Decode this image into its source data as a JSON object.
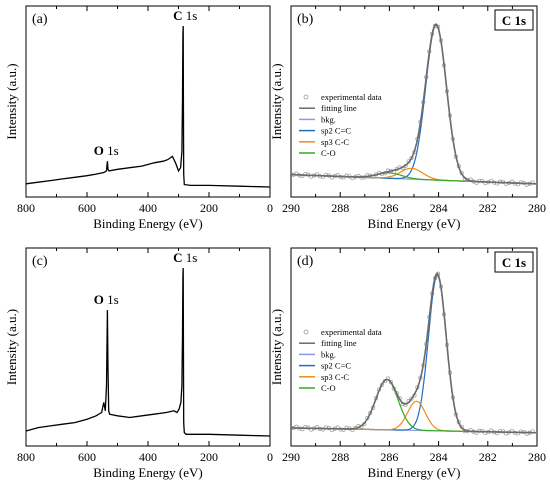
{
  "chart_data": [
    {
      "type": "line",
      "panel_label": "(a)",
      "xlabel": "Binding Energy (eV)",
      "ylabel": "Intensity (a.u.)",
      "xlim": [
        800,
        0
      ],
      "x_reversed": true,
      "xticks": [
        800,
        600,
        400,
        200,
        0
      ],
      "x_tick_labels": [
        "800",
        "600",
        "400",
        "200",
        "0"
      ],
      "y_ticks_shown": false,
      "annotations": [
        {
          "bold": "C",
          "text": " 1s",
          "x": 285
        },
        {
          "bold": "O",
          "text": " 1s",
          "x": 532
        }
      ],
      "series": [
        {
          "color": "#000000",
          "points": [
            [
              800,
              0.02
            ],
            [
              760,
              0.03
            ],
            [
              720,
              0.04
            ],
            [
              680,
              0.05
            ],
            [
              640,
              0.06
            ],
            [
              600,
              0.07
            ],
            [
              570,
              0.08
            ],
            [
              545,
              0.09
            ],
            [
              536,
              0.1
            ],
            [
              533,
              0.16
            ],
            [
              531,
              0.11
            ],
            [
              528,
              0.1
            ],
            [
              500,
              0.11
            ],
            [
              460,
              0.12
            ],
            [
              420,
              0.13
            ],
            [
              380,
              0.15
            ],
            [
              350,
              0.16
            ],
            [
              335,
              0.17
            ],
            [
              320,
              0.19
            ],
            [
              310,
              0.15
            ],
            [
              300,
              0.1
            ],
            [
              293,
              0.12
            ],
            [
              289,
              0.22
            ],
            [
              287,
              0.55
            ],
            [
              285.5,
              0.95
            ],
            [
              284.6,
              1.0
            ],
            [
              283.8,
              0.55
            ],
            [
              283,
              0.08
            ],
            [
              281,
              0.015
            ],
            [
              260,
              0.01
            ],
            [
              200,
              0.01
            ],
            [
              100,
              0.005
            ],
            [
              0,
              0.0
            ]
          ]
        }
      ]
    },
    {
      "type": "line",
      "panel_label": "(b)",
      "xlabel": "Bind Energy (eV)",
      "ylabel": "Intensity (a.u.)",
      "xlim": [
        290,
        280
      ],
      "x_reversed": true,
      "xticks": [
        290,
        288,
        286,
        284,
        282,
        280
      ],
      "x_tick_labels": [
        "290",
        "288",
        "286",
        "284",
        "282",
        "280"
      ],
      "y_ticks_shown": false,
      "box_label": "C 1s",
      "legend": [
        "experimental data",
        "fitting line",
        "bkg.",
        "sp2 C=C",
        "sp3 C-C",
        "C-O"
      ],
      "legend_location": "center-left",
      "baseline": 0.02,
      "background": {
        "name": "bkg.",
        "color": "#8899ee",
        "y_left": 0.06,
        "y_right": 0.0
      },
      "components": [
        {
          "name": "sp2 C=C",
          "color": "#1f6fc4",
          "center": 284.1,
          "height": 1.0,
          "sigma": 0.42
        },
        {
          "name": "sp3 C-C",
          "color": "#f08a1c",
          "center": 285.1,
          "height": 0.07,
          "sigma": 0.45
        },
        {
          "name": "C-O",
          "color": "#33aa22",
          "center": 286.0,
          "height": 0.035,
          "sigma": 0.5
        }
      ],
      "fit_color": "#6b6b6b",
      "exp_color": "#9a9a9a"
    },
    {
      "type": "line",
      "panel_label": "(c)",
      "xlabel": "Binding Energy (eV)",
      "ylabel": "Intensity (a.u.)",
      "xlim": [
        800,
        0
      ],
      "x_reversed": true,
      "xticks": [
        800,
        600,
        400,
        200,
        0
      ],
      "x_tick_labels": [
        "800",
        "600",
        "400",
        "200",
        "0"
      ],
      "y_ticks_shown": false,
      "annotations": [
        {
          "bold": "C",
          "text": " 1s",
          "x": 285
        },
        {
          "bold": "O",
          "text": " 1s",
          "x": 532
        }
      ],
      "series": [
        {
          "color": "#000000",
          "points": [
            [
              800,
              0.03
            ],
            [
              760,
              0.05
            ],
            [
              720,
              0.06
            ],
            [
              680,
              0.07
            ],
            [
              640,
              0.08
            ],
            [
              600,
              0.1
            ],
            [
              570,
              0.12
            ],
            [
              552,
              0.14
            ],
            [
              545,
              0.2
            ],
            [
              540,
              0.15
            ],
            [
              536,
              0.3
            ],
            [
              533,
              0.75
            ],
            [
              531,
              0.4
            ],
            [
              529,
              0.15
            ],
            [
              526,
              0.13
            ],
            [
              500,
              0.12
            ],
            [
              460,
              0.11
            ],
            [
              420,
              0.12
            ],
            [
              380,
              0.13
            ],
            [
              340,
              0.14
            ],
            [
              315,
              0.15
            ],
            [
              305,
              0.14
            ],
            [
              298,
              0.16
            ],
            [
              292,
              0.2
            ],
            [
              289,
              0.3
            ],
            [
              287,
              0.6
            ],
            [
              285.5,
              0.95
            ],
            [
              284.6,
              1.0
            ],
            [
              283.8,
              0.6
            ],
            [
              283,
              0.08
            ],
            [
              281,
              0.02
            ],
            [
              275,
              0.01
            ],
            [
              200,
              0.01
            ],
            [
              100,
              0.005
            ],
            [
              0,
              0.0
            ]
          ]
        }
      ]
    },
    {
      "type": "line",
      "panel_label": "(d)",
      "xlabel": "Bind Energy (eV)",
      "ylabel": "Intensity (a.u.)",
      "xlim": [
        290,
        280
      ],
      "x_reversed": true,
      "xticks": [
        290,
        288,
        286,
        284,
        282,
        280
      ],
      "x_tick_labels": [
        "290",
        "288",
        "286",
        "284",
        "282",
        "280"
      ],
      "y_ticks_shown": false,
      "box_label": "C 1s",
      "legend": [
        "experimental data",
        "fitting line",
        "bkg.",
        "sp2 C=C",
        "sp3 C-C",
        "C-O"
      ],
      "legend_location": "center-left",
      "baseline": 0.02,
      "background": {
        "name": "bkg.",
        "color": "#8899ee",
        "y_left": 0.03,
        "y_right": 0.0
      },
      "components": [
        {
          "name": "sp2 C=C",
          "color": "#1f6fc4",
          "center": 284.05,
          "height": 0.96,
          "sigma": 0.36
        },
        {
          "name": "sp3 C-C",
          "color": "#f08a1c",
          "center": 284.9,
          "height": 0.18,
          "sigma": 0.36
        },
        {
          "name": "C-O",
          "color": "#33aa22",
          "center": 286.1,
          "height": 0.31,
          "sigma": 0.45
        }
      ],
      "fit_color": "#6b6b6b",
      "exp_color": "#9a9a9a"
    }
  ]
}
